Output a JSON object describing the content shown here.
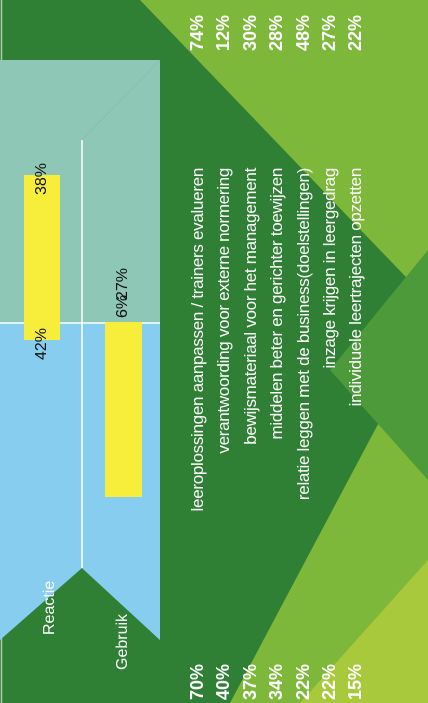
{
  "colors": {
    "background_dark": "#2f7f35",
    "background_light": "#7db83b",
    "background_lime": "#a8c93c",
    "reactie_area": "#8ec7b6",
    "gebruik_area": "#86cdf0",
    "bar": "#f6ee3a"
  },
  "chart_data": {
    "type": "bar",
    "orientation": "rotated",
    "series": [
      {
        "name": "Reactie",
        "values": [
          42,
          38
        ]
      },
      {
        "name": "Gebruik",
        "values": [
          27,
          6
        ]
      }
    ],
    "bar_labels": {
      "reactie": [
        "42%",
        "38%"
      ],
      "gebruik": [
        "27%",
        "6%"
      ]
    },
    "items": [
      {
        "left": "70%",
        "label": "leeroplossingen aanpassen / trainers evalueren",
        "right": "74%"
      },
      {
        "left": "40%",
        "label": "verantwoording voor externe normering",
        "right": "12%"
      },
      {
        "left": "37%",
        "label": "bewijsmateriaal voor het management",
        "right": "30%"
      },
      {
        "left": "34%",
        "label": "middelen beter en gerichter toewijzen",
        "right": "28%"
      },
      {
        "left": "22%",
        "label": "relatie leggen met de business(doelstellingen)",
        "right": "48%"
      },
      {
        "left": "22%",
        "label": "inzage krijgen in leergedrag",
        "right": "27%"
      },
      {
        "left": "15%",
        "label": "individuele leertrajecten opzetten",
        "right": "22%"
      }
    ]
  },
  "legend": {
    "reactie": "Reactie",
    "gebruik": "Gebruik"
  }
}
